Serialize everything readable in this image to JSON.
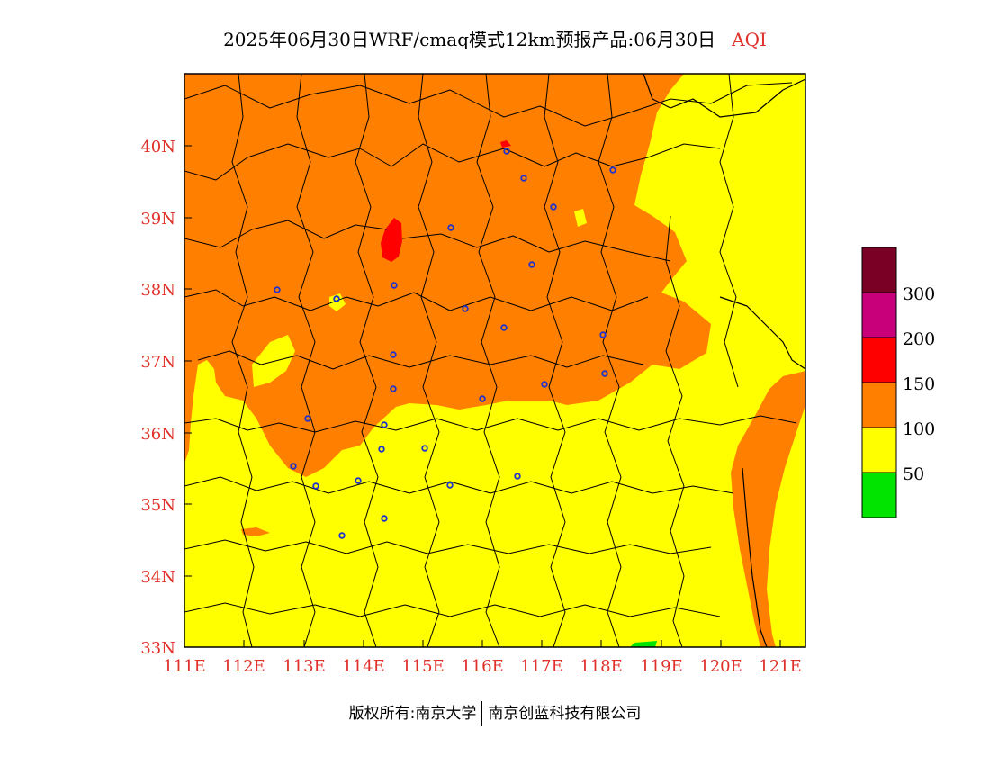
{
  "title": {
    "main": "2025年06月30日WRF/cmaq模式12km预报产品:06月30日",
    "variable": "AQI"
  },
  "axes": {
    "latitude_ticks": [
      "40N",
      "39N",
      "38N",
      "37N",
      "36N",
      "35N",
      "34N",
      "33N"
    ],
    "longitude_ticks": [
      "111E",
      "112E",
      "113E",
      "114E",
      "115E",
      "116E",
      "117E",
      "118E",
      "119E",
      "120E",
      "121E"
    ],
    "lat_range": [
      33,
      41
    ],
    "lon_range": [
      111,
      121.4
    ]
  },
  "legend": {
    "levels": [
      {
        "label": "300",
        "color": "#7a0026"
      },
      {
        "label": "200",
        "color": "#c8007a"
      },
      {
        "label": "150",
        "color": "#ff0000"
      },
      {
        "label": "100",
        "color": "#ff7f00"
      },
      {
        "label": "50",
        "color": "#ffff00"
      },
      {
        "label": "",
        "color": "#00e400"
      }
    ]
  },
  "colors": {
    "good": "#00e400",
    "moderate": "#ffff00",
    "usg": "#ff7f00",
    "unhealthy": "#ff0000",
    "station_marker": "#2233cc",
    "axis_label": "#e0302a"
  },
  "footer": {
    "copyright_prefix": "版权所有:",
    "org1": "南京大学",
    "org2": "南京创蓝科技有限公司"
  }
}
